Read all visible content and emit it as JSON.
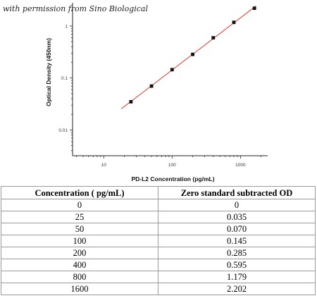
{
  "credit": "with permission from Sino Biological",
  "chart_data": {
    "type": "scatter",
    "xlabel": "PD-L2 Concentration (pg/mL)",
    "ylabel": "Optical Density (450nm)",
    "xscale": "log",
    "yscale": "log",
    "xlim": [
      3.5,
      2500
    ],
    "ylim": [
      0.0032,
      2.8
    ],
    "x_ticks": [
      10,
      100,
      1000
    ],
    "x_tick_labels": [
      "10",
      "100",
      "1000"
    ],
    "y_ticks": [
      0.01,
      0.1,
      1
    ],
    "y_tick_labels": [
      "0.01",
      "0.1",
      "1"
    ],
    "series": [
      {
        "x": [
          25,
          50,
          100,
          200,
          400,
          800,
          1600
        ],
        "y": [
          0.035,
          0.07,
          0.145,
          0.285,
          0.595,
          1.179,
          2.202
        ],
        "marker_color": "#111111"
      }
    ],
    "fit_line": {
      "x": [
        25,
        1600
      ],
      "color": "#e0201b"
    },
    "grid": false
  },
  "table": {
    "headers": [
      "Concentration ( pg/mL)",
      "Zero standard subtracted OD"
    ],
    "rows": [
      [
        "0",
        "0"
      ],
      [
        "25",
        "0.035"
      ],
      [
        "50",
        "0.070"
      ],
      [
        "100",
        "0.145"
      ],
      [
        "200",
        "0.285"
      ],
      [
        "400",
        "0.595"
      ],
      [
        "800",
        "1.179"
      ],
      [
        "1600",
        "2.202"
      ]
    ]
  }
}
